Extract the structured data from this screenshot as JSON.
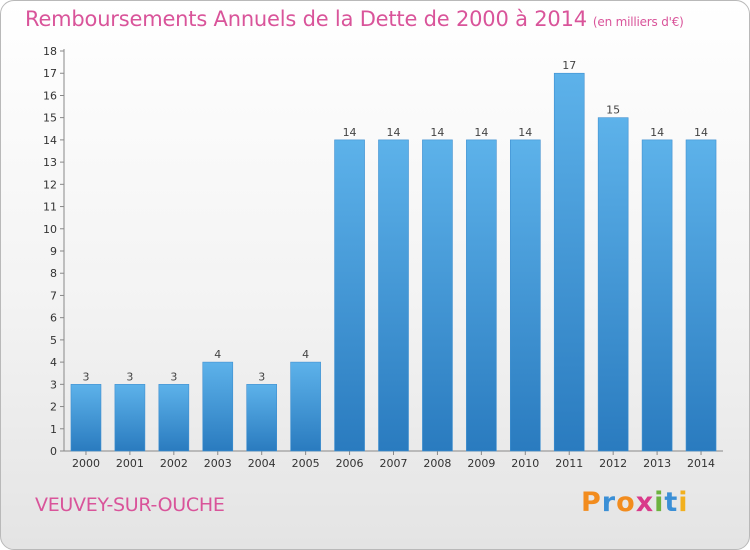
{
  "title": "Remboursements Annuels de la Dette de 2000 à 2014",
  "subtitle": "(en milliers d'€)",
  "commune": "VEUVEY-SUR-OUCHE",
  "brand": {
    "text": "Proxiti",
    "letters": [
      "P",
      "r",
      "o",
      "x",
      "i",
      "t",
      "i"
    ],
    "colors": [
      "#f28c1e",
      "#3a8fd6",
      "#f28c1e",
      "#d93a8a",
      "#6db33f",
      "#3a8fd6",
      "#f2b01e"
    ]
  },
  "colors": {
    "title": "#d9549a",
    "bar_top": "#5db2ea",
    "bar_bottom": "#2a7bbf"
  },
  "chart_data": {
    "type": "bar",
    "categories": [
      "2000",
      "2001",
      "2002",
      "2003",
      "2004",
      "2005",
      "2006",
      "2007",
      "2008",
      "2009",
      "2010",
      "2011",
      "2012",
      "2013",
      "2014"
    ],
    "values": [
      3,
      3,
      3,
      4,
      3,
      4,
      14,
      14,
      14,
      14,
      14,
      17,
      15,
      14,
      14
    ],
    "title": "Remboursements Annuels de la Dette de 2000 à 2014",
    "xlabel": "",
    "ylabel": "",
    "ylim": [
      0,
      18
    ],
    "yticks": [
      0,
      1,
      2,
      3,
      4,
      5,
      6,
      7,
      8,
      9,
      10,
      11,
      12,
      13,
      14,
      15,
      16,
      17,
      18
    ],
    "grid": false,
    "legend": "none"
  }
}
